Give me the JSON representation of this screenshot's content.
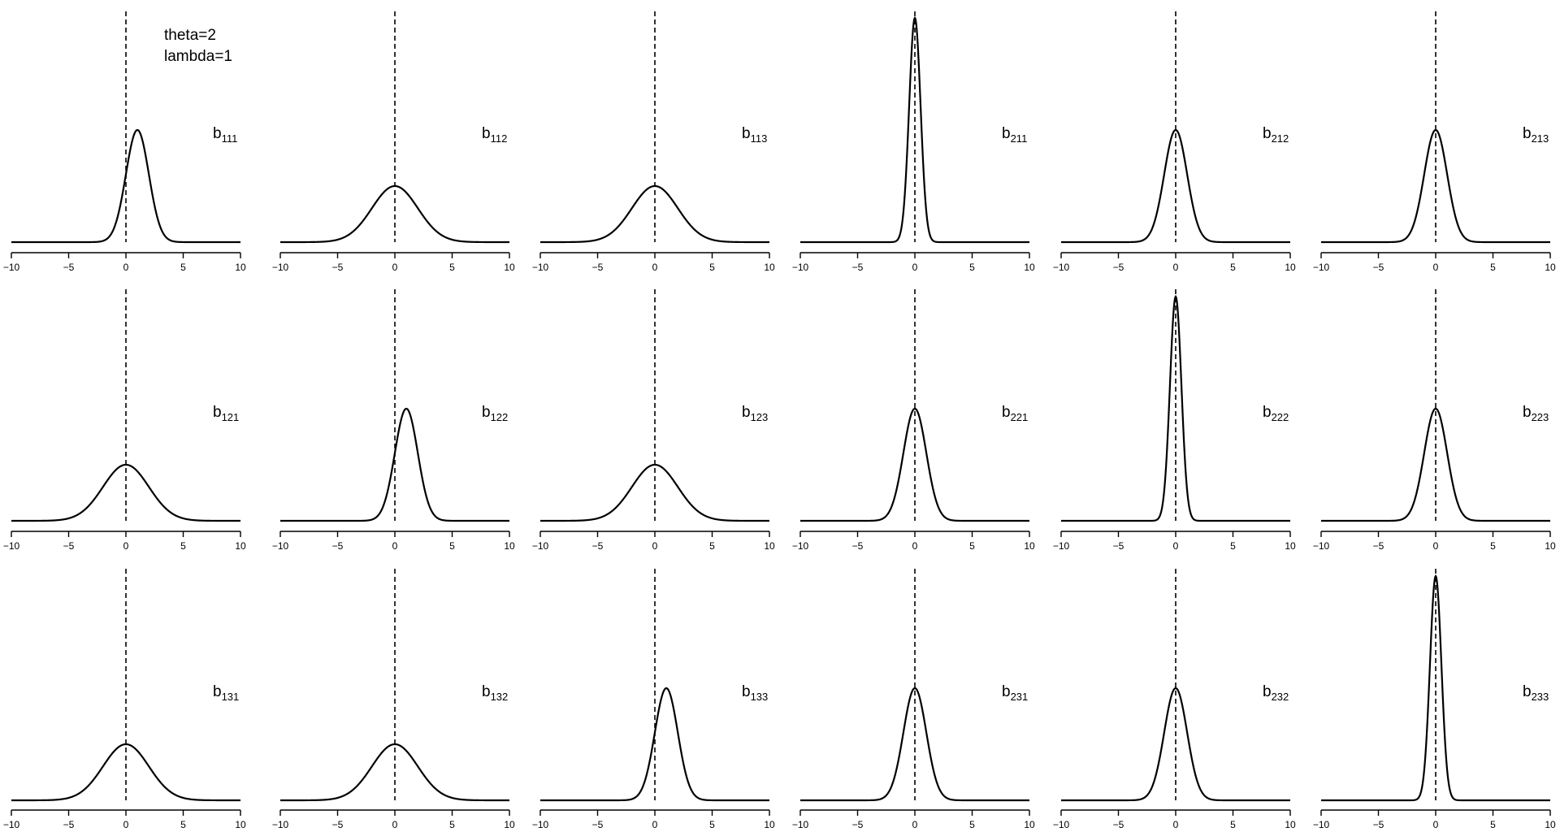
{
  "annotation": {
    "line1": "theta=2",
    "line2": "lambda=1"
  },
  "chart_data": [
    {
      "type": "line",
      "label": "b",
      "subscript": "111",
      "x_ticks": [
        -10,
        -5,
        0,
        5,
        10
      ],
      "xlim": [
        -10,
        10
      ],
      "mean": 1,
      "sd": 1,
      "vline_x": 0
    },
    {
      "type": "line",
      "label": "b",
      "subscript": "112",
      "x_ticks": [
        -10,
        -5,
        0,
        5,
        10
      ],
      "xlim": [
        -10,
        10
      ],
      "mean": 0,
      "sd": 2,
      "vline_x": 0
    },
    {
      "type": "line",
      "label": "b",
      "subscript": "113",
      "x_ticks": [
        -10,
        -5,
        0,
        5,
        10
      ],
      "xlim": [
        -10,
        10
      ],
      "mean": 0,
      "sd": 2,
      "vline_x": 0
    },
    {
      "type": "line",
      "label": "b",
      "subscript": "211",
      "x_ticks": [
        -10,
        -5,
        0,
        5,
        10
      ],
      "xlim": [
        -10,
        10
      ],
      "mean": 0,
      "sd": 0.5,
      "vline_x": 0
    },
    {
      "type": "line",
      "label": "b",
      "subscript": "212",
      "x_ticks": [
        -10,
        -5,
        0,
        5,
        10
      ],
      "xlim": [
        -10,
        10
      ],
      "mean": 0,
      "sd": 1,
      "vline_x": 0
    },
    {
      "type": "line",
      "label": "b",
      "subscript": "213",
      "x_ticks": [
        -10,
        -5,
        0,
        5,
        10
      ],
      "xlim": [
        -10,
        10
      ],
      "mean": 0,
      "sd": 1,
      "vline_x": 0
    },
    {
      "type": "line",
      "label": "b",
      "subscript": "121",
      "x_ticks": [
        -10,
        -5,
        0,
        5,
        10
      ],
      "xlim": [
        -10,
        10
      ],
      "mean": 0,
      "sd": 2,
      "vline_x": 0
    },
    {
      "type": "line",
      "label": "b",
      "subscript": "122",
      "x_ticks": [
        -10,
        -5,
        0,
        5,
        10
      ],
      "xlim": [
        -10,
        10
      ],
      "mean": 1,
      "sd": 1,
      "vline_x": 0
    },
    {
      "type": "line",
      "label": "b",
      "subscript": "123",
      "x_ticks": [
        -10,
        -5,
        0,
        5,
        10
      ],
      "xlim": [
        -10,
        10
      ],
      "mean": 0,
      "sd": 2,
      "vline_x": 0
    },
    {
      "type": "line",
      "label": "b",
      "subscript": "221",
      "x_ticks": [
        -10,
        -5,
        0,
        5,
        10
      ],
      "xlim": [
        -10,
        10
      ],
      "mean": 0,
      "sd": 1,
      "vline_x": 0
    },
    {
      "type": "line",
      "label": "b",
      "subscript": "222",
      "x_ticks": [
        -10,
        -5,
        0,
        5,
        10
      ],
      "xlim": [
        -10,
        10
      ],
      "mean": 0,
      "sd": 0.5,
      "vline_x": 0
    },
    {
      "type": "line",
      "label": "b",
      "subscript": "223",
      "x_ticks": [
        -10,
        -5,
        0,
        5,
        10
      ],
      "xlim": [
        -10,
        10
      ],
      "mean": 0,
      "sd": 1,
      "vline_x": 0
    },
    {
      "type": "line",
      "label": "b",
      "subscript": "131",
      "x_ticks": [
        -10,
        -5,
        0,
        5,
        10
      ],
      "xlim": [
        -10,
        10
      ],
      "mean": 0,
      "sd": 2,
      "vline_x": 0
    },
    {
      "type": "line",
      "label": "b",
      "subscript": "132",
      "x_ticks": [
        -10,
        -5,
        0,
        5,
        10
      ],
      "xlim": [
        -10,
        10
      ],
      "mean": 0,
      "sd": 2,
      "vline_x": 0
    },
    {
      "type": "line",
      "label": "b",
      "subscript": "133",
      "x_ticks": [
        -10,
        -5,
        0,
        5,
        10
      ],
      "xlim": [
        -10,
        10
      ],
      "mean": 1,
      "sd": 1,
      "vline_x": 0
    },
    {
      "type": "line",
      "label": "b",
      "subscript": "231",
      "x_ticks": [
        -10,
        -5,
        0,
        5,
        10
      ],
      "xlim": [
        -10,
        10
      ],
      "mean": 0,
      "sd": 1,
      "vline_x": 0
    },
    {
      "type": "line",
      "label": "b",
      "subscript": "232",
      "x_ticks": [
        -10,
        -5,
        0,
        5,
        10
      ],
      "xlim": [
        -10,
        10
      ],
      "mean": 0,
      "sd": 1,
      "vline_x": 0
    },
    {
      "type": "line",
      "label": "b",
      "subscript": "233",
      "x_ticks": [
        -10,
        -5,
        0,
        5,
        10
      ],
      "xlim": [
        -10,
        10
      ],
      "mean": 0,
      "sd": 0.5,
      "vline_x": 0
    }
  ]
}
